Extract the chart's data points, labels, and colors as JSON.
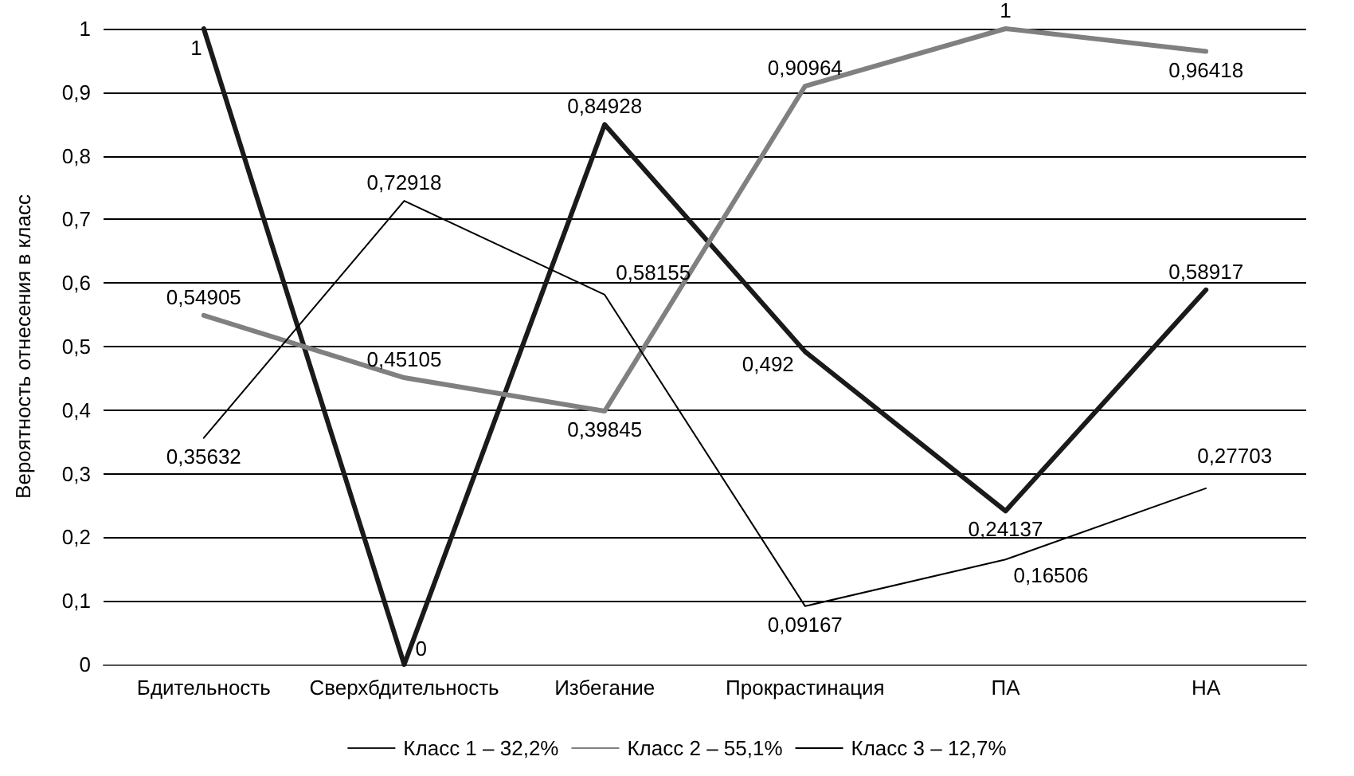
{
  "chart_data": {
    "type": "line",
    "ylabel": "Вероятность отнесения в класс",
    "categories": [
      "Бдительность",
      "Сверхбдительность",
      "Избегание",
      "Прокрастинация",
      "ПА",
      "НА"
    ],
    "series": [
      {
        "name": "Класс 1 – 32,2%",
        "color": "#1a1a1a",
        "values": [
          1,
          0,
          0.84928,
          0.492,
          0.24137,
          0.58917
        ],
        "value_labels": [
          "1",
          "0",
          "0,84928",
          "0,492",
          "0,24137",
          "0,58917"
        ]
      },
      {
        "name": "Класс 2 – 55,1%",
        "color": "#808080",
        "values": [
          0.54905,
          0.45105,
          0.39845,
          0.90964,
          1,
          0.96418
        ],
        "value_labels": [
          "0,54905",
          "0,45105",
          "0,39845",
          "0,90964",
          "1",
          "0,96418"
        ]
      },
      {
        "name": "Класс 3 – 12,7%",
        "color": "#000000",
        "values": [
          0.35632,
          0.72918,
          0.58155,
          0.09167,
          0.16506,
          0.27703
        ],
        "value_labels": [
          "0,35632",
          "0,72918",
          "0,58155",
          "0,09167",
          "0,16506",
          "0,27703"
        ]
      }
    ],
    "ylim": [
      0,
      1
    ],
    "yticks": [
      0,
      {
        "value": 0.1,
        "label": "0,1"
      },
      {
        "value": 0.2,
        "label": "0,2"
      },
      {
        "value": 0.3,
        "label": "0,3"
      },
      {
        "value": 0.4,
        "label": "0,4"
      },
      {
        "value": 0.5,
        "label": "0,5"
      },
      {
        "value": 0.6,
        "label": "0,6"
      },
      {
        "value": 0.7,
        "label": "0,7"
      },
      {
        "value": 0.8,
        "label": "0,8"
      },
      {
        "value": 0.9,
        "label": "0,9"
      },
      1
    ],
    "grid": "y",
    "legend": "bottom",
    "marker": "none",
    "line_style": "solid"
  }
}
